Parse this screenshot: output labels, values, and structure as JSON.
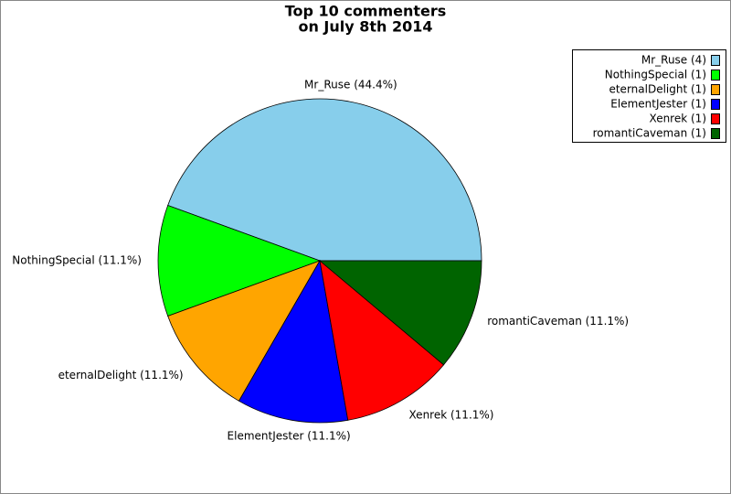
{
  "chart_data": {
    "type": "pie",
    "title": "Top 10 commenters",
    "subtitle": "on July 8th 2014",
    "categories": [
      "Mr_Ruse",
      "NothingSpecial",
      "eternalDelight",
      "ElementJester",
      "Xenrek",
      "romantiCaveman"
    ],
    "values": [
      4,
      1,
      1,
      1,
      1,
      1
    ],
    "colors": [
      "#87ceeb",
      "#00ff00",
      "#ffa500",
      "#0000ff",
      "#ff0000",
      "#006400"
    ],
    "slice_labels": [
      "Mr_Ruse (44.4%)",
      "NothingSpecial (11.1%)",
      "eternalDelight (11.1%)",
      "ElementJester (11.1%)",
      "Xenrek (11.1%)",
      "romantiCaveman (11.1%)"
    ],
    "legend_labels": [
      "Mr_Ruse (4)",
      "NothingSpecial (1)",
      "eternalDelight (1)",
      "ElementJester (1)",
      "Xenrek (1)",
      "romantiCaveman (1)"
    ],
    "legend": "upper right"
  }
}
